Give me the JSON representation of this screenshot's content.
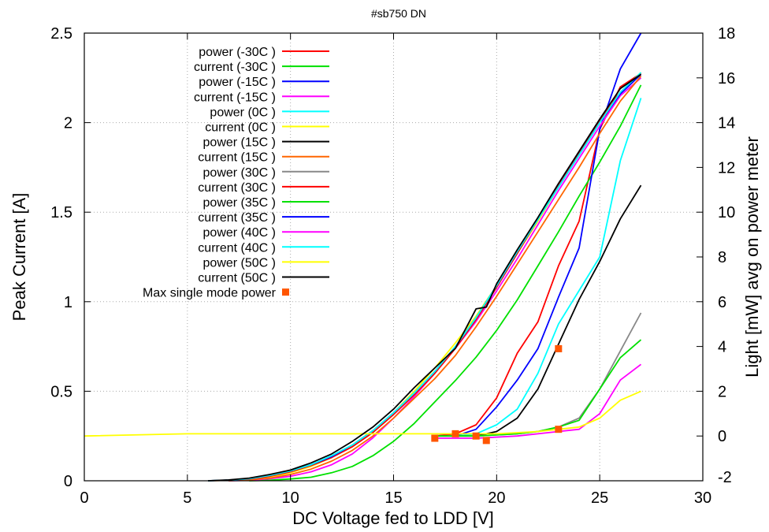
{
  "chart_data": {
    "type": "line",
    "title": "#sb750 DN",
    "xlabel": "DC Voltage fed to LDD [V]",
    "ylabel": "Peak Current [A]",
    "y2label": "Light [mW] avg on power meter",
    "xlim": [
      0,
      30
    ],
    "ylim": [
      0,
      2.5
    ],
    "y2lim": [
      -2,
      18
    ],
    "xticks": [
      "0",
      "5",
      "10",
      "15",
      "20",
      "25",
      "30"
    ],
    "yticks": [
      "0",
      "0.5",
      "1",
      "1.5",
      "2",
      "2.5"
    ],
    "y2ticks": [
      "-2",
      "0",
      "2",
      "4",
      "6",
      "8",
      "10",
      "12",
      "14",
      "16",
      "18"
    ],
    "grid": true,
    "legend_position": "top-left",
    "series": [
      {
        "name": "power (-30C )",
        "color": "#ff0000",
        "axis": "y2",
        "x": [
          17,
          18,
          19,
          20,
          21,
          22,
          23,
          24,
          25,
          26,
          27
        ],
        "y": [
          0,
          0.1,
          0.5,
          1.7,
          3.7,
          5.1,
          7.6,
          9.6,
          13.7,
          15.6,
          16.2
        ]
      },
      {
        "name": "current (-30C )",
        "color": "#00e000",
        "axis": "y",
        "x": [
          8,
          9,
          10,
          11,
          12,
          13,
          14,
          15,
          16,
          17,
          18,
          19,
          20,
          21,
          22,
          23,
          24,
          25,
          26,
          27
        ],
        "y": [
          0,
          0.003,
          0.01,
          0.02,
          0.045,
          0.08,
          0.14,
          0.22,
          0.32,
          0.44,
          0.56,
          0.69,
          0.84,
          1.01,
          1.2,
          1.39,
          1.59,
          1.78,
          1.98,
          2.21
        ]
      },
      {
        "name": "power (-15C )",
        "color": "#0000ff",
        "axis": "y2",
        "x": [
          18,
          19,
          20,
          21,
          22,
          23,
          24,
          25,
          26,
          27
        ],
        "y": [
          0,
          0.3,
          1.3,
          2.5,
          3.9,
          6.2,
          8.4,
          13.7,
          16.4,
          18
        ]
      },
      {
        "name": "current (-15C )",
        "color": "#ff00ff",
        "axis": "y",
        "x": [
          7,
          8,
          9,
          10,
          11,
          12,
          13,
          14,
          15,
          16,
          17,
          18,
          19,
          20,
          21,
          22,
          23,
          24,
          25,
          26,
          27
        ],
        "y": [
          0,
          0.003,
          0.012,
          0.025,
          0.05,
          0.09,
          0.15,
          0.24,
          0.35,
          0.47,
          0.6,
          0.74,
          0.89,
          1.06,
          1.24,
          1.43,
          1.62,
          1.8,
          1.98,
          2.15,
          2.25
        ]
      },
      {
        "name": "power (0C )",
        "color": "#00ffff",
        "axis": "y2",
        "x": [
          18,
          19,
          20,
          21,
          22,
          23,
          24,
          25,
          26,
          27
        ],
        "y": [
          0,
          0.1,
          0.5,
          1.2,
          2.8,
          5,
          6.5,
          8,
          12.3,
          15.1
        ]
      },
      {
        "name": "current (0C )",
        "color": "#ffff00",
        "axis": "y",
        "x": [
          6,
          7,
          8,
          9,
          10,
          11,
          12,
          13,
          14,
          15,
          16,
          17,
          18,
          19,
          20,
          21,
          22,
          23,
          24,
          25,
          26,
          27
        ],
        "y": [
          0,
          0.003,
          0.01,
          0.02,
          0.045,
          0.08,
          0.13,
          0.2,
          0.28,
          0.38,
          0.5,
          0.63,
          0.77,
          0.92,
          1.09,
          1.27,
          1.45,
          1.64,
          1.82,
          2.0,
          2.17,
          2.28
        ]
      },
      {
        "name": "power (15C )",
        "color": "#000000",
        "axis": "y2",
        "x": [
          19,
          20,
          21,
          22,
          23,
          24,
          25,
          26,
          27
        ],
        "y": [
          0,
          0.2,
          0.8,
          2.1,
          4.1,
          6.1,
          7.8,
          9.7,
          11.2
        ]
      },
      {
        "name": "current (15C )",
        "color": "#ff6600",
        "axis": "y",
        "x": [
          7,
          8,
          9,
          10,
          11,
          12,
          13,
          14,
          15,
          16,
          17,
          18,
          19,
          20,
          21,
          22,
          23,
          24,
          25,
          26,
          27
        ],
        "y": [
          0,
          0.005,
          0.015,
          0.035,
          0.065,
          0.11,
          0.17,
          0.25,
          0.35,
          0.46,
          0.57,
          0.7,
          0.86,
          1.03,
          1.21,
          1.39,
          1.57,
          1.75,
          1.94,
          2.12,
          2.26
        ]
      },
      {
        "name": "power (30C )",
        "color": "#888888",
        "axis": "y2",
        "x": [
          17,
          19,
          21,
          22,
          23,
          24,
          25,
          26,
          27
        ],
        "y": [
          0,
          0,
          0.1,
          0.2,
          0.4,
          0.8,
          2.1,
          3.8,
          5.5
        ]
      },
      {
        "name": "current (30C )",
        "color": "#ff0000",
        "axis": "y",
        "x": [
          6,
          7,
          8,
          9,
          10,
          11,
          12,
          13,
          14,
          15,
          16,
          17,
          18,
          19,
          20,
          21,
          22,
          23,
          24,
          25,
          26,
          27
        ],
        "y": [
          0,
          0.003,
          0.01,
          0.025,
          0.05,
          0.085,
          0.13,
          0.19,
          0.27,
          0.37,
          0.48,
          0.6,
          0.74,
          0.9,
          1.08,
          1.27,
          1.46,
          1.65,
          1.83,
          2.01,
          2.17,
          2.27
        ]
      },
      {
        "name": "power (35C )",
        "color": "#00e000",
        "axis": "y2",
        "x": [
          17,
          19,
          21,
          22,
          23,
          24,
          25,
          26,
          27
        ],
        "y": [
          0,
          0,
          0.1,
          0.2,
          0.4,
          0.7,
          2.1,
          3.5,
          4.3
        ]
      },
      {
        "name": "current (35C )",
        "color": "#0000ff",
        "axis": "y",
        "x": [
          6,
          7,
          8,
          9,
          10,
          11,
          12,
          13,
          14,
          15,
          16,
          17,
          18,
          19,
          20,
          21,
          22,
          23,
          24,
          25,
          26,
          27
        ],
        "y": [
          0,
          0.004,
          0.012,
          0.03,
          0.055,
          0.09,
          0.135,
          0.2,
          0.28,
          0.38,
          0.49,
          0.61,
          0.75,
          0.91,
          1.09,
          1.28,
          1.46,
          1.64,
          1.82,
          2.0,
          2.16,
          2.27
        ]
      },
      {
        "name": "power (40C )",
        "color": "#ff00ff",
        "axis": "y2",
        "x": [
          17,
          19,
          21,
          22,
          23,
          24,
          25,
          26,
          27
        ],
        "y": [
          -0.1,
          -0.1,
          0,
          0.1,
          0.2,
          0.3,
          1.0,
          2.5,
          3.2
        ]
      },
      {
        "name": "current (40C )",
        "color": "#00ffff",
        "axis": "y",
        "x": [
          6,
          7,
          8,
          9,
          10,
          11,
          12,
          13,
          14,
          15,
          16,
          17,
          18,
          19,
          20,
          21,
          22,
          23,
          24,
          25,
          26,
          27
        ],
        "y": [
          0,
          0.004,
          0.012,
          0.03,
          0.055,
          0.09,
          0.14,
          0.2,
          0.28,
          0.38,
          0.49,
          0.61,
          0.75,
          0.91,
          1.09,
          1.28,
          1.46,
          1.64,
          1.82,
          2.0,
          2.17,
          2.28
        ]
      },
      {
        "name": "power (50C )",
        "color": "#ffff00",
        "axis": "y2",
        "x": [
          0,
          5,
          10,
          15,
          20,
          22,
          23,
          24,
          25,
          26,
          27
        ],
        "y": [
          0,
          0.1,
          0.1,
          0.1,
          0.1,
          0.2,
          0.3,
          0.4,
          0.8,
          1.6,
          2.0
        ]
      },
      {
        "name": "current (50C )",
        "color": "#000000",
        "axis": "y",
        "x": [
          6,
          7,
          8,
          9,
          10,
          11,
          12,
          13,
          14,
          15,
          16,
          17,
          18,
          18.5,
          19,
          19.5,
          20,
          21,
          22,
          23,
          24,
          25,
          26,
          27
        ],
        "y": [
          0,
          0.005,
          0.015,
          0.035,
          0.06,
          0.1,
          0.15,
          0.22,
          0.3,
          0.4,
          0.52,
          0.63,
          0.74,
          0.85,
          0.96,
          0.97,
          1.1,
          1.29,
          1.47,
          1.66,
          1.84,
          2.02,
          2.19,
          2.27
        ]
      },
      {
        "name": "Max single mode power",
        "color": "#ff5500",
        "axis": "y2",
        "style": "points",
        "x": [
          17,
          18,
          19,
          19.5,
          23,
          23
        ],
        "y": [
          -0.1,
          0.1,
          0,
          -0.2,
          0.3,
          3.9
        ]
      }
    ]
  }
}
